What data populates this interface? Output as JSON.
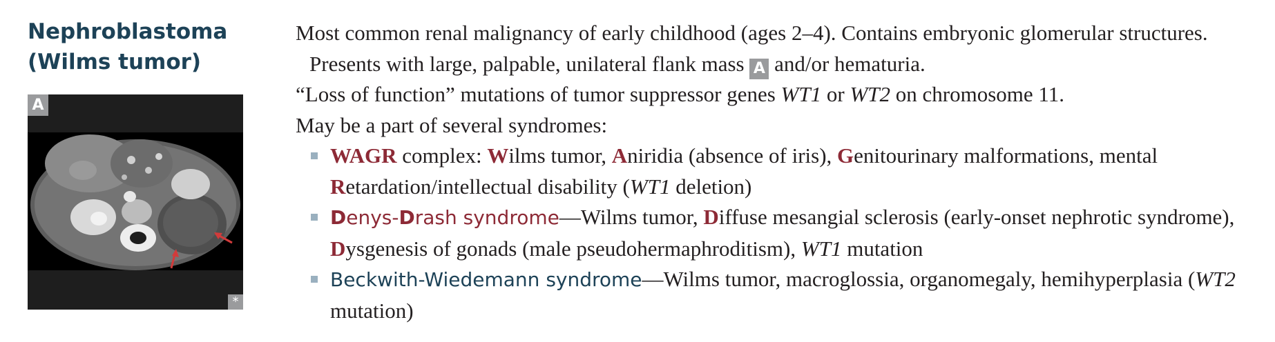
{
  "title": {
    "line1": "Nephroblastoma",
    "line2": "(Wilms tumor)"
  },
  "figure": {
    "label": "A",
    "badge": "*"
  },
  "paragraphs": {
    "p1": {
      "text_before": "Most common renal malignancy of early childhood (ages 2–4). Contains embryonic glomerular structures. Presents with large, palpable, unilateral flank mass ",
      "ref": "A",
      "text_after": " and/or hematuria."
    },
    "p2": {
      "open_quote": "“Loss of function” mutations of tumor suppressor genes ",
      "gene1": "WT1",
      "or": " or ",
      "gene2": "WT2",
      "tail": " on chromosome 11."
    },
    "p3": "May be a part of several syndromes:"
  },
  "syndromes": {
    "wagr": {
      "name": "WAGR",
      "t1": " complex: ",
      "w": "W",
      "w_rest": "ilms tumor, ",
      "a": "A",
      "a_rest": "niridia (absence of iris), ",
      "g": "G",
      "g_rest": "enitourinary malformations, mental ",
      "r": "R",
      "r_rest": "etardation/intellectual disability (",
      "gene": "WT1",
      "tail": " deletion)"
    },
    "denys": {
      "d1": "D",
      "n1": "enys-",
      "d2": "D",
      "n2": "rash syndrome",
      "t1": "—Wilms tumor, ",
      "d3": "D",
      "n3": "iffuse mesangial sclerosis (early-onset nephrotic syndrome), ",
      "d4": "D",
      "n4": "ysgenesis of gonads (male pseudohermaphroditism), ",
      "gene": "WT1",
      "tail": " mutation"
    },
    "beckwith": {
      "name": "Beckwith-Wiedemann syndrome",
      "t1": "—Wilms tumor, macroglossia, organomegaly, hemihyperplasia (",
      "gene": "WT2",
      "tail": " mutation)"
    }
  },
  "colors": {
    "heading": "#1d4257",
    "accent_red": "#8d2a36",
    "bullet": "#9ab0bf",
    "label_bg": "#9a9b9d"
  }
}
